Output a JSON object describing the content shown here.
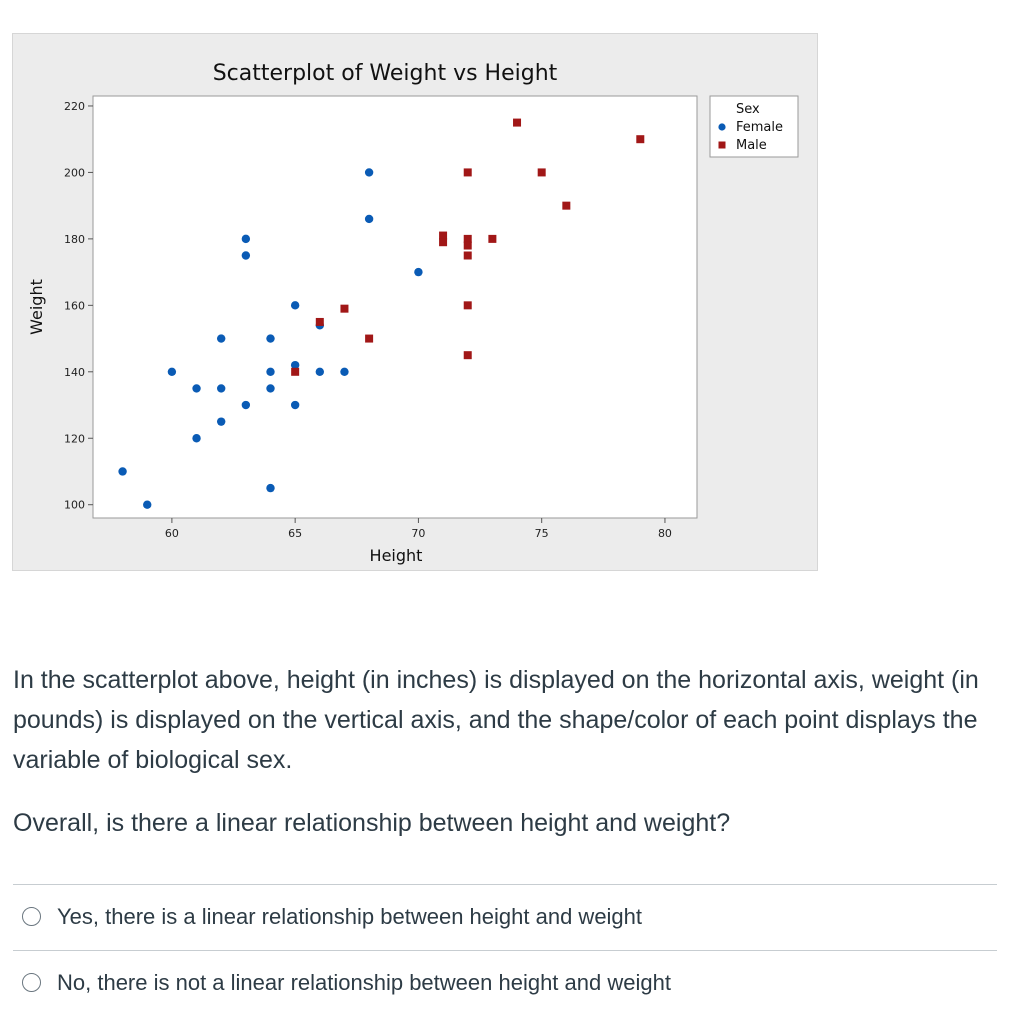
{
  "chart_data": {
    "type": "scatter",
    "title": "Scatterplot of Weight vs Height",
    "xlabel": "Height",
    "ylabel": "Weight",
    "xlim": [
      56.8,
      81.3
    ],
    "ylim": [
      96,
      223
    ],
    "xticks": [
      60,
      65,
      70,
      75,
      80
    ],
    "yticks": [
      100,
      120,
      140,
      160,
      180,
      200,
      220
    ],
    "grid": false,
    "legend": {
      "title": "Sex",
      "placement": "top-right"
    },
    "series": [
      {
        "name": "Female",
        "marker": "circle",
        "color": "#0a5bb5",
        "points": [
          [
            58,
            110
          ],
          [
            59,
            100
          ],
          [
            60,
            140
          ],
          [
            61,
            135
          ],
          [
            61,
            120
          ],
          [
            62,
            150
          ],
          [
            62,
            135
          ],
          [
            62,
            125
          ],
          [
            63,
            180
          ],
          [
            63,
            175
          ],
          [
            63,
            130
          ],
          [
            64,
            150
          ],
          [
            64,
            140
          ],
          [
            64,
            135
          ],
          [
            64,
            105
          ],
          [
            65,
            160
          ],
          [
            65,
            142
          ],
          [
            65,
            130
          ],
          [
            66,
            140
          ],
          [
            66,
            154
          ],
          [
            67,
            140
          ],
          [
            68,
            200
          ],
          [
            68,
            186
          ],
          [
            70,
            170
          ]
        ]
      },
      {
        "name": "Male",
        "marker": "square",
        "color": "#a11717",
        "points": [
          [
            65,
            140
          ],
          [
            66,
            155
          ],
          [
            67,
            159
          ],
          [
            68,
            150
          ],
          [
            71,
            181
          ],
          [
            71,
            179
          ],
          [
            72,
            200
          ],
          [
            72,
            180
          ],
          [
            72,
            178
          ],
          [
            72,
            175
          ],
          [
            72,
            160
          ],
          [
            72,
            145
          ],
          [
            73,
            180
          ],
          [
            74,
            215
          ],
          [
            75,
            200
          ],
          [
            76,
            190
          ],
          [
            79,
            210
          ]
        ]
      }
    ]
  },
  "question": {
    "description": "In the scatterplot above, height (in inches) is displayed on the horizontal axis, weight (in pounds) is displayed on the vertical axis, and the shape/color of each point displays the variable of biological sex.",
    "prompt": "Overall, is there a linear relationship between height and weight?",
    "options": [
      {
        "label": "Yes, there is a linear relationship between height and weight"
      },
      {
        "label": "No, there is not a linear relationship between height and weight"
      }
    ]
  }
}
